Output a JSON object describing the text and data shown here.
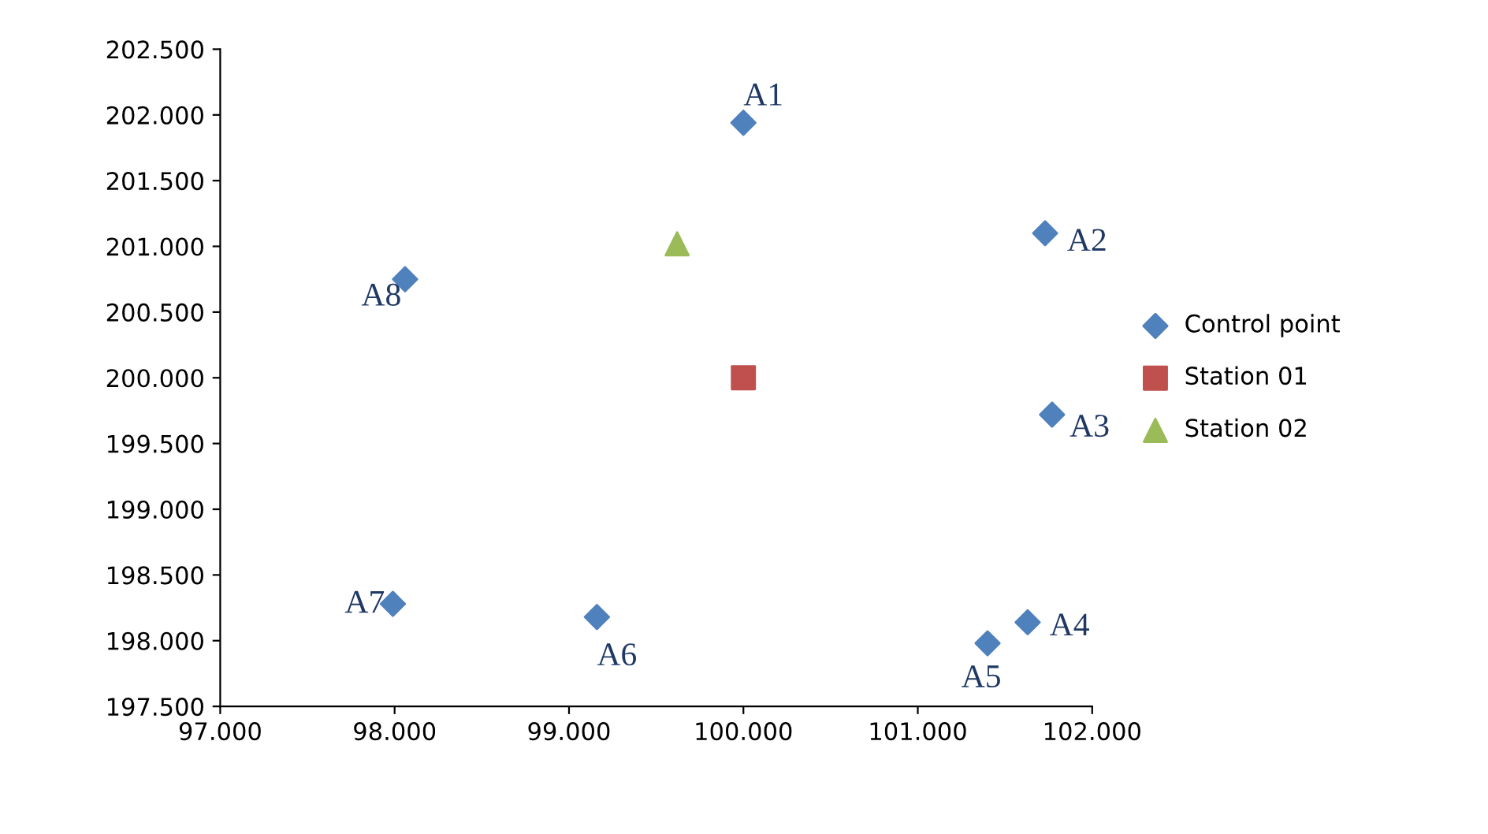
{
  "chart_data": {
    "type": "scatter",
    "series": [
      {
        "name": "Control point",
        "color": "#4f81bd",
        "marker": "diamond",
        "x": [
          100.0,
          101.73,
          101.77,
          101.63,
          101.4,
          99.16,
          97.99,
          98.06
        ],
        "values": [
          201.94,
          201.1,
          199.72,
          198.14,
          197.98,
          198.18,
          198.28,
          200.75
        ]
      },
      {
        "name": "Station 01",
        "color": "#c0504d",
        "marker": "square",
        "x": [
          100.0
        ],
        "values": [
          200.0
        ]
      },
      {
        "name": "Station 02",
        "color": "#9bbb59",
        "marker": "triangle",
        "x": [
          99.62
        ],
        "values": [
          201.02
        ]
      }
    ],
    "annotations": [
      {
        "text": "A1",
        "x": 100.0,
        "y": 201.94
      },
      {
        "text": "A2",
        "x": 101.73,
        "y": 201.1
      },
      {
        "text": "A3",
        "x": 101.77,
        "y": 199.72
      },
      {
        "text": "A4",
        "x": 101.63,
        "y": 198.14
      },
      {
        "text": "A5",
        "x": 101.4,
        "y": 197.98
      },
      {
        "text": "A6",
        "x": 99.16,
        "y": 198.18
      },
      {
        "text": "A7",
        "x": 97.99,
        "y": 198.28
      },
      {
        "text": "A8",
        "x": 98.06,
        "y": 200.75
      }
    ],
    "xlim": [
      97,
      102
    ],
    "xticks": [
      {
        "value": 97,
        "label": "97.000"
      },
      {
        "value": 98,
        "label": "98.000"
      },
      {
        "value": 99,
        "label": "99.000"
      },
      {
        "value": 100,
        "label": "100.000"
      },
      {
        "value": 101,
        "label": "101.000"
      },
      {
        "value": 102,
        "label": "102.000"
      }
    ],
    "ylim": [
      197.5,
      202.5
    ],
    "yticks": [
      {
        "value": 197.5,
        "label": "197.500"
      },
      {
        "value": 198,
        "label": "198.000"
      },
      {
        "value": 198.5,
        "label": "198.500"
      },
      {
        "value": 199,
        "label": "199.000"
      },
      {
        "value": 199.5,
        "label": "199.500"
      },
      {
        "value": 200,
        "label": "200.000"
      },
      {
        "value": 200.5,
        "label": "200.500"
      },
      {
        "value": 201,
        "label": "201.000"
      },
      {
        "value": 201.5,
        "label": "201.500"
      },
      {
        "value": 202,
        "label": "202.000"
      },
      {
        "value": 202.5,
        "label": "202.500"
      }
    ],
    "grid": false,
    "legend": "right"
  }
}
